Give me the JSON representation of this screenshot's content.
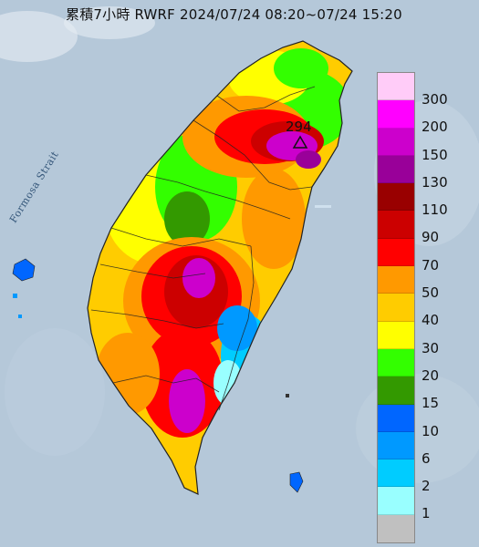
{
  "title": "累積7小時 RWRF 2024/07/24 08:20~07/24 15:20",
  "water_label": "Formosa Strait",
  "max_label": "294",
  "marker_icon": "triangle-outline-icon",
  "legend": {
    "labels": [
      "300",
      "200",
      "150",
      "130",
      "110",
      "90",
      "70",
      "50",
      "40",
      "30",
      "20",
      "15",
      "10",
      "6",
      "2",
      "1"
    ],
    "colors": [
      "#ffccf8",
      "#ff00ff",
      "#cc00cc",
      "#990099",
      "#990000",
      "#cc0000",
      "#ff0000",
      "#ff9900",
      "#ffcc00",
      "#ffff00",
      "#33ff00",
      "#339900",
      "#0066ff",
      "#0099ff",
      "#00ccff",
      "#99ffff",
      "#c0c0c0"
    ]
  }
}
